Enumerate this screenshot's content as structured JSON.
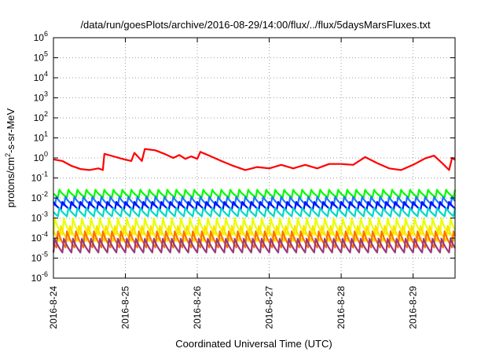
{
  "chart_data": {
    "type": "line",
    "title": "/data/run/goesPlots/archive/2016-08-29/14:00/flux/../flux/5daysMarsFluxes.txt",
    "xlabel": "Coordinated Universal Time (UTC)",
    "ylabel": {
      "prefix": "protons/cm",
      "superscript": "2",
      "suffix": "-s-sr-MeV"
    },
    "y_scale": "log",
    "ylim": [
      1e-06,
      1000000.0
    ],
    "y_ticks": [
      {
        "base": "10",
        "exp": "-6",
        "value": 1e-06
      },
      {
        "base": "10",
        "exp": "-5",
        "value": 1e-05
      },
      {
        "base": "10",
        "exp": "-4",
        "value": 0.0001
      },
      {
        "base": "10",
        "exp": "-3",
        "value": 0.001
      },
      {
        "base": "10",
        "exp": "-2",
        "value": 0.01
      },
      {
        "base": "10",
        "exp": "-1",
        "value": 0.1
      },
      {
        "base": "10",
        "exp": "0",
        "value": 1
      },
      {
        "base": "10",
        "exp": "1",
        "value": 10
      },
      {
        "base": "10",
        "exp": "2",
        "value": 100
      },
      {
        "base": "10",
        "exp": "3",
        "value": 1000
      },
      {
        "base": "10",
        "exp": "4",
        "value": 10000
      },
      {
        "base": "10",
        "exp": "5",
        "value": 100000
      },
      {
        "base": "10",
        "exp": "6",
        "value": 1000000
      }
    ],
    "xlim": [
      "2016-08-24T00:00",
      "2016-08-29T14:00"
    ],
    "x_ticks": [
      {
        "label": "2016-8-24",
        "value": "2016-08-24T00:00"
      },
      {
        "label": "2016-8-25",
        "value": "2016-08-25T00:00"
      },
      {
        "label": "2016-8-26",
        "value": "2016-08-26T00:00"
      },
      {
        "label": "2016-8-27",
        "value": "2016-08-27T00:00"
      },
      {
        "label": "2016-8-28",
        "value": "2016-08-28T00:00"
      },
      {
        "label": "2016-8-29",
        "value": "2016-08-29T00:00"
      }
    ],
    "grid": true,
    "series": [
      {
        "color": "#ff0000",
        "points": [
          [
            "2016-08-24T00:00",
            0.85
          ],
          [
            "2016-08-24T03:00",
            0.7
          ],
          [
            "2016-08-24T06:00",
            0.4
          ],
          [
            "2016-08-24T09:00",
            0.28
          ],
          [
            "2016-08-24T12:00",
            0.25
          ],
          [
            "2016-08-24T15:00",
            0.3
          ],
          [
            "2016-08-24T16:30",
            0.25
          ],
          [
            "2016-08-24T17:00",
            1.6
          ],
          [
            "2016-08-24T20:00",
            1.2
          ],
          [
            "2016-08-24T23:00",
            0.9
          ],
          [
            "2016-08-25T02:00",
            0.7
          ],
          [
            "2016-08-25T03:00",
            1.8
          ],
          [
            "2016-08-25T05:30",
            0.7
          ],
          [
            "2016-08-25T06:30",
            2.8
          ],
          [
            "2016-08-25T10:00",
            2.4
          ],
          [
            "2016-08-25T13:00",
            1.6
          ],
          [
            "2016-08-25T16:00",
            1.0
          ],
          [
            "2016-08-25T18:00",
            1.4
          ],
          [
            "2016-08-25T20:00",
            0.9
          ],
          [
            "2016-08-25T22:00",
            1.2
          ],
          [
            "2016-08-26T00:00",
            0.9
          ],
          [
            "2016-08-26T01:00",
            2.0
          ],
          [
            "2016-08-26T04:00",
            1.3
          ],
          [
            "2016-08-26T08:00",
            0.7
          ],
          [
            "2016-08-26T12:00",
            0.4
          ],
          [
            "2016-08-26T16:00",
            0.25
          ],
          [
            "2016-08-26T20:00",
            0.35
          ],
          [
            "2016-08-27T00:00",
            0.3
          ],
          [
            "2016-08-27T04:00",
            0.45
          ],
          [
            "2016-08-27T08:00",
            0.3
          ],
          [
            "2016-08-27T12:00",
            0.45
          ],
          [
            "2016-08-27T16:00",
            0.3
          ],
          [
            "2016-08-27T20:00",
            0.5
          ],
          [
            "2016-08-28T00:00",
            0.5
          ],
          [
            "2016-08-28T04:00",
            0.45
          ],
          [
            "2016-08-28T08:00",
            1.1
          ],
          [
            "2016-08-28T12:00",
            0.55
          ],
          [
            "2016-08-28T16:00",
            0.3
          ],
          [
            "2016-08-28T20:00",
            0.25
          ],
          [
            "2016-08-29T00:00",
            0.45
          ],
          [
            "2016-08-29T04:00",
            0.95
          ],
          [
            "2016-08-29T07:00",
            1.3
          ],
          [
            "2016-08-29T10:00",
            0.5
          ],
          [
            "2016-08-29T12:00",
            0.25
          ],
          [
            "2016-08-29T13:00",
            1.0
          ],
          [
            "2016-08-29T14:00",
            0.8
          ]
        ]
      },
      {
        "color": "#00ff00",
        "min": 0.01,
        "max": 0.03
      },
      {
        "color": "#1f78ff",
        "min": 0.004,
        "max": 0.015
      },
      {
        "color": "#0010ff",
        "min": 0.0025,
        "max": 0.009
      },
      {
        "color": "#00d8c8",
        "min": 0.0012,
        "max": 0.005
      },
      {
        "color": "#e8ff00",
        "min": 0.00012,
        "max": 0.0012
      },
      {
        "color": "#ffe000",
        "min": 6e-05,
        "max": 0.0006
      },
      {
        "color": "#ff7000",
        "min": 3e-05,
        "max": 0.0004
      },
      {
        "color": "#9a3a7a",
        "min": 1.8e-05,
        "max": 0.00018
      }
    ]
  }
}
